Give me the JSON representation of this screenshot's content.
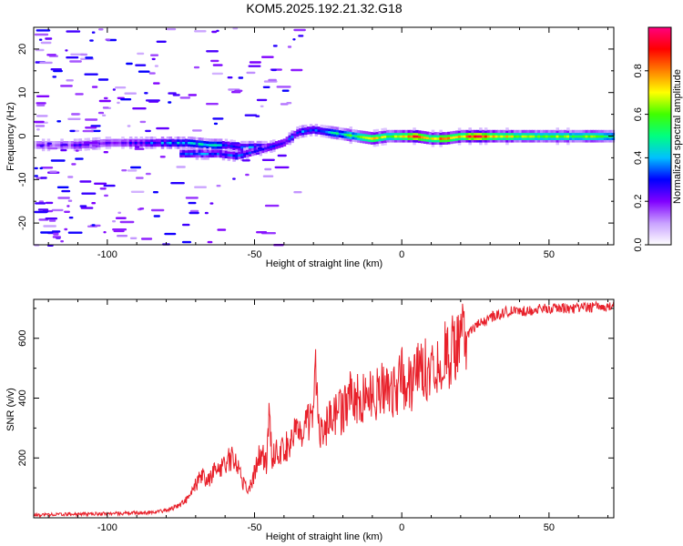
{
  "title": "KOM5.2025.192.21.32.G18",
  "chart_data": [
    {
      "type": "heatmap",
      "xlabel": "Height of straight line (km)",
      "ylabel": "Frequency (Hz)",
      "xlim": [
        -125,
        72
      ],
      "ylim": [
        -25,
        25
      ],
      "xticks": [
        -100,
        -50,
        0,
        50
      ],
      "xtick_labels": [
        "-100",
        "-50",
        "0",
        "50"
      ],
      "yticks": [
        -20,
        -10,
        0,
        10,
        20
      ],
      "ytick_labels": [
        "-20",
        "-10",
        "0",
        "10",
        "20"
      ],
      "colorbar": {
        "label": "Normalized spectral amplitude",
        "range": [
          0,
          1
        ],
        "ticks": [
          0.0,
          0.2,
          0.4,
          0.6,
          0.8
        ],
        "tick_labels": [
          "0.0",
          "0.2",
          "0.4",
          "0.6",
          "0.8"
        ],
        "colors": [
          "#ffffff",
          "#c8a0ff",
          "#8000ff",
          "#0000ff",
          "#00c0ff",
          "#00ff80",
          "#40ff00",
          "#ffff00",
          "#ff8000",
          "#ff0000",
          "#ff0080"
        ]
      },
      "ridge": [
        {
          "x": -120,
          "y": -2.0,
          "amp": 0.15
        },
        {
          "x": -110,
          "y": -2.0,
          "amp": 0.2
        },
        {
          "x": -100,
          "y": -1.5,
          "amp": 0.2
        },
        {
          "x": -90,
          "y": -1.5,
          "amp": 0.25
        },
        {
          "x": -80,
          "y": -1.5,
          "amp": 0.35
        },
        {
          "x": -72,
          "y": -1.5,
          "amp": 0.4
        },
        {
          "x": -65,
          "y": -2.0,
          "amp": 0.45
        },
        {
          "x": -60,
          "y": -2.0,
          "amp": 0.35
        },
        {
          "x": -55,
          "y": -2.5,
          "amp": 0.3
        },
        {
          "x": -50,
          "y": -2.5,
          "amp": 0.35
        },
        {
          "x": -45,
          "y": -2.5,
          "amp": 0.3
        },
        {
          "x": -40,
          "y": -1.5,
          "amp": 0.3
        },
        {
          "x": -35,
          "y": 1.0,
          "amp": 0.3
        },
        {
          "x": -30,
          "y": 1.5,
          "amp": 0.35
        },
        {
          "x": -25,
          "y": 1.0,
          "amp": 0.4
        },
        {
          "x": -20,
          "y": 0.5,
          "amp": 0.45
        },
        {
          "x": -15,
          "y": 0.0,
          "amp": 0.6
        },
        {
          "x": -10,
          "y": -0.5,
          "amp": 0.7
        },
        {
          "x": -5,
          "y": 0.0,
          "amp": 0.6
        },
        {
          "x": 0,
          "y": 0.0,
          "amp": 0.7
        },
        {
          "x": 5,
          "y": 0.0,
          "amp": 0.9
        },
        {
          "x": 10,
          "y": -0.5,
          "amp": 0.65
        },
        {
          "x": 15,
          "y": -0.5,
          "amp": 0.85
        },
        {
          "x": 20,
          "y": 0.0,
          "amp": 0.7
        },
        {
          "x": 25,
          "y": 0.0,
          "amp": 0.95
        },
        {
          "x": 30,
          "y": 0.0,
          "amp": 0.75
        },
        {
          "x": 40,
          "y": 0.0,
          "amp": 0.65
        },
        {
          "x": 50,
          "y": 0.0,
          "amp": 0.6
        },
        {
          "x": 60,
          "y": 0.0,
          "amp": 0.6
        },
        {
          "x": 72,
          "y": 0.0,
          "amp": 0.55
        }
      ],
      "secondary_ridge": [
        {
          "x": -75,
          "y": -4.0,
          "amp": 0.3
        },
        {
          "x": -68,
          "y": -4.0,
          "amp": 0.35
        },
        {
          "x": -62,
          "y": -4.0,
          "amp": 0.3
        },
        {
          "x": -56,
          "y": -4.5,
          "amp": 0.35
        },
        {
          "x": -50,
          "y": -3.5,
          "amp": 0.3
        },
        {
          "x": -45,
          "y": -2.5,
          "amp": 0.25
        }
      ]
    },
    {
      "type": "line",
      "xlabel": "Height of straight line (km)",
      "ylabel": "SNR (v/v)",
      "xlim": [
        -125,
        72
      ],
      "ylim": [
        0,
        730
      ],
      "xticks": [
        -100,
        -50,
        0,
        50
      ],
      "xtick_labels": [
        "-100",
        "-50",
        "0",
        "50"
      ],
      "yticks": [
        200,
        400,
        600
      ],
      "ytick_labels": [
        "200",
        "400",
        "600"
      ],
      "color": "#e8202a",
      "x": [
        -125,
        -110,
        -95,
        -85,
        -80,
        -75,
        -72,
        -70,
        -68,
        -66,
        -64,
        -62,
        -60,
        -58,
        -56,
        -54,
        -52,
        -50,
        -48,
        -46,
        -45,
        -44,
        -42,
        -40,
        -38,
        -36,
        -34,
        -32,
        -30,
        -29,
        -28,
        -26,
        -24,
        -22,
        -20,
        -18,
        -16,
        -14,
        -12,
        -10,
        -8,
        -6,
        -4,
        -2,
        0,
        2,
        4,
        6,
        8,
        10,
        12,
        14,
        16,
        18,
        20,
        22,
        25,
        28,
        30,
        33,
        36,
        40,
        45,
        50,
        55,
        60,
        65,
        72
      ],
      "y": [
        10,
        12,
        15,
        18,
        25,
        45,
        70,
        110,
        140,
        120,
        150,
        170,
        180,
        200,
        190,
        120,
        90,
        150,
        220,
        180,
        360,
        200,
        230,
        220,
        260,
        300,
        250,
        320,
        330,
        530,
        300,
        300,
        330,
        360,
        350,
        400,
        410,
        380,
        420,
        400,
        420,
        440,
        430,
        430,
        470,
        440,
        460,
        490,
        500,
        510,
        520,
        540,
        550,
        570,
        590,
        610,
        640,
        655,
        670,
        680,
        690,
        690,
        695,
        700,
        700,
        700,
        705,
        705
      ]
    }
  ]
}
